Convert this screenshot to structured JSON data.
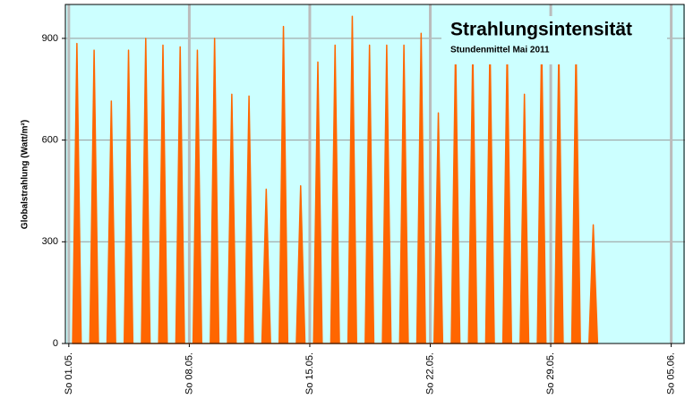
{
  "chart_data": {
    "type": "area",
    "title": "Strahlungsintensität",
    "subtitle": "Stundenmittel Mai 2011",
    "y_label": "Globalstrahlung (Watt/m²)",
    "color": "#ff6600",
    "background": "#ccffff",
    "grid": true,
    "x": [
      0.22,
      0.47,
      0.72,
      1.22,
      1.47,
      1.72,
      2.22,
      2.47,
      2.72,
      3.22,
      3.47,
      3.72,
      4.22,
      4.47,
      4.72,
      5.22,
      5.47,
      5.72,
      6.22,
      6.47,
      6.72,
      7.22,
      7.47,
      7.72,
      8.22,
      8.47,
      8.72,
      9.22,
      9.47,
      9.72,
      10.22,
      10.47,
      10.72,
      11.22,
      11.47,
      11.72,
      12.22,
      12.47,
      12.72,
      13.22,
      13.47,
      13.72,
      14.22,
      14.47,
      14.72,
      15.22,
      15.47,
      15.72,
      16.22,
      16.47,
      16.72,
      17.22,
      17.47,
      17.72,
      18.22,
      18.47,
      18.72,
      19.22,
      19.47,
      19.72,
      20.22,
      20.47,
      20.72,
      21.22,
      21.47,
      21.72,
      22.22,
      22.47,
      22.72,
      23.22,
      23.47,
      23.72,
      24.22,
      24.47,
      24.72,
      25.22,
      25.47,
      25.72,
      26.22,
      26.47,
      26.72,
      27.22,
      27.47,
      27.72,
      28.22,
      28.47,
      28.72,
      29.22,
      29.47,
      29.72,
      30.22,
      30.47,
      30.72
    ],
    "values": [
      0,
      885,
      0,
      0,
      865,
      0,
      0,
      715,
      0,
      0,
      865,
      0,
      0,
      900,
      0,
      0,
      880,
      0,
      0,
      875,
      0,
      0,
      865,
      0,
      0,
      900,
      0,
      0,
      735,
      0,
      0,
      730,
      0,
      0,
      455,
      0,
      0,
      935,
      0,
      0,
      465,
      0,
      0,
      830,
      0,
      0,
      880,
      0,
      0,
      965,
      0,
      0,
      880,
      0,
      0,
      880,
      0,
      0,
      880,
      0,
      0,
      915,
      0,
      0,
      680,
      0,
      0,
      880,
      0,
      0,
      870,
      0,
      0,
      890,
      0,
      0,
      880,
      0,
      0,
      735,
      0,
      0,
      900,
      0,
      0,
      870,
      0,
      0,
      880,
      0,
      0,
      350,
      0
    ],
    "xlim": [
      -0.2,
      35.8
    ],
    "xticks": [
      {
        "value": 0,
        "label": "So 01.05."
      },
      {
        "value": 7,
        "label": "So 08.05."
      },
      {
        "value": 14,
        "label": "So 15.05."
      },
      {
        "value": 21,
        "label": "So 22.05."
      },
      {
        "value": 28,
        "label": "So 29.05."
      },
      {
        "value": 35,
        "label": "So 05.06."
      }
    ],
    "ylim": [
      0,
      1000
    ],
    "yticks": [
      0,
      300,
      600,
      900
    ]
  }
}
